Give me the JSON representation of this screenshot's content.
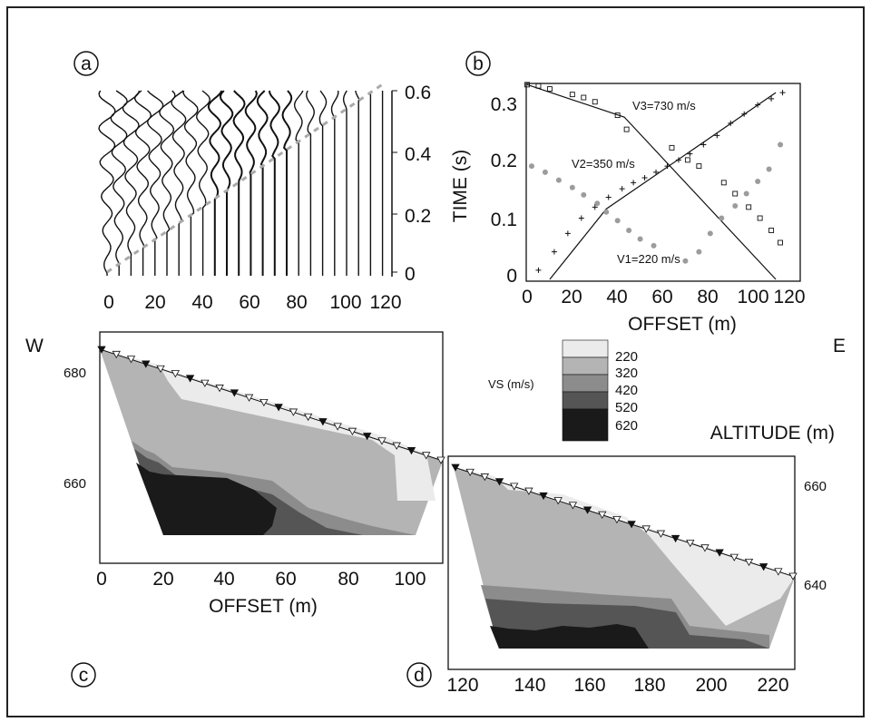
{
  "panels": {
    "a": {
      "label": "a",
      "x_ticks": [
        "0",
        "20",
        "40",
        "60",
        "80",
        "100",
        "120"
      ],
      "y_ticks": [
        "0",
        "0.2",
        "0.4",
        "0.6"
      ]
    },
    "b": {
      "label": "b",
      "ylabel": "TIME (s)",
      "xlabel": "OFFSET (m)",
      "x_ticks": [
        "0",
        "20",
        "40",
        "60",
        "80",
        "100",
        "120"
      ],
      "y_ticks": [
        "0",
        "0.1",
        "0.2",
        "0.3"
      ],
      "annotations": [
        "V3=730 m/s",
        "V2=350 m/s",
        "V1=220 m/s"
      ]
    },
    "c": {
      "label": "c",
      "west": "W",
      "xlabel": "OFFSET (m)",
      "x_ticks": [
        "0",
        "20",
        "40",
        "60",
        "80",
        "100"
      ],
      "y_ticks": [
        "680",
        "660"
      ]
    },
    "d": {
      "label": "d",
      "east": "E",
      "altitude_label": "ALTITUDE (m)",
      "x_ticks": [
        "120",
        "140",
        "160",
        "180",
        "200",
        "220"
      ],
      "y_ticks": [
        "660",
        "640"
      ]
    }
  },
  "legend": {
    "title": "VS (m/s)",
    "items": [
      {
        "label": "220",
        "color": "#ebebeb"
      },
      {
        "label": "320",
        "color": "#b4b4b4"
      },
      {
        "label": "420",
        "color": "#8c8c8c"
      },
      {
        "label": "520",
        "color": "#555555"
      },
      {
        "label": "620",
        "color": "#1a1a1a"
      }
    ]
  },
  "chart_data": {
    "type": "scatter",
    "xlabel": "OFFSET (m)",
    "ylabel": "TIME (s)",
    "xlim": [
      0,
      120
    ],
    "ylim": [
      0,
      0.32
    ],
    "series": [
      {
        "name": "V3=730 m/s",
        "x": [
          0,
          5,
          10,
          20,
          25,
          30,
          40,
          44,
          64,
          71,
          76,
          87,
          92,
          98,
          103,
          108,
          112
        ],
        "y": [
          0.318,
          0.316,
          0.311,
          0.302,
          0.297,
          0.29,
          0.268,
          0.245,
          0.215,
          0.195,
          0.185,
          0.158,
          0.14,
          0.118,
          0.1,
          0.08,
          0.06
        ]
      },
      {
        "name": "V2=350 m/s",
        "x": [
          2,
          8,
          14,
          20,
          25,
          31,
          35,
          40,
          45,
          50,
          56,
          70,
          76,
          81,
          86,
          92,
          97,
          102,
          107,
          112
        ],
        "y": [
          0.185,
          0.175,
          0.162,
          0.15,
          0.138,
          0.124,
          0.11,
          0.096,
          0.08,
          0.066,
          0.055,
          0.03,
          0.045,
          0.075,
          0.1,
          0.12,
          0.14,
          0.16,
          0.18,
          0.22
        ]
      },
      {
        "name": "V1=220 m/s",
        "x": [
          5,
          12,
          18,
          24,
          30,
          36,
          42,
          47,
          52,
          57,
          62,
          67,
          72,
          78,
          84,
          90,
          96,
          102,
          108,
          113
        ],
        "y": [
          0.015,
          0.045,
          0.075,
          0.1,
          0.118,
          0.134,
          0.148,
          0.158,
          0.166,
          0.175,
          0.185,
          0.195,
          0.205,
          0.22,
          0.235,
          0.255,
          0.27,
          0.285,
          0.295,
          0.305
        ]
      }
    ],
    "fit_lines": [
      {
        "x": [
          0,
          43,
          110
        ],
        "y": [
          0.318,
          0.265,
          0.0
        ]
      },
      {
        "x": [
          10,
          35,
          110
        ],
        "y": [
          0.0,
          0.115,
          0.305
        ]
      }
    ]
  }
}
